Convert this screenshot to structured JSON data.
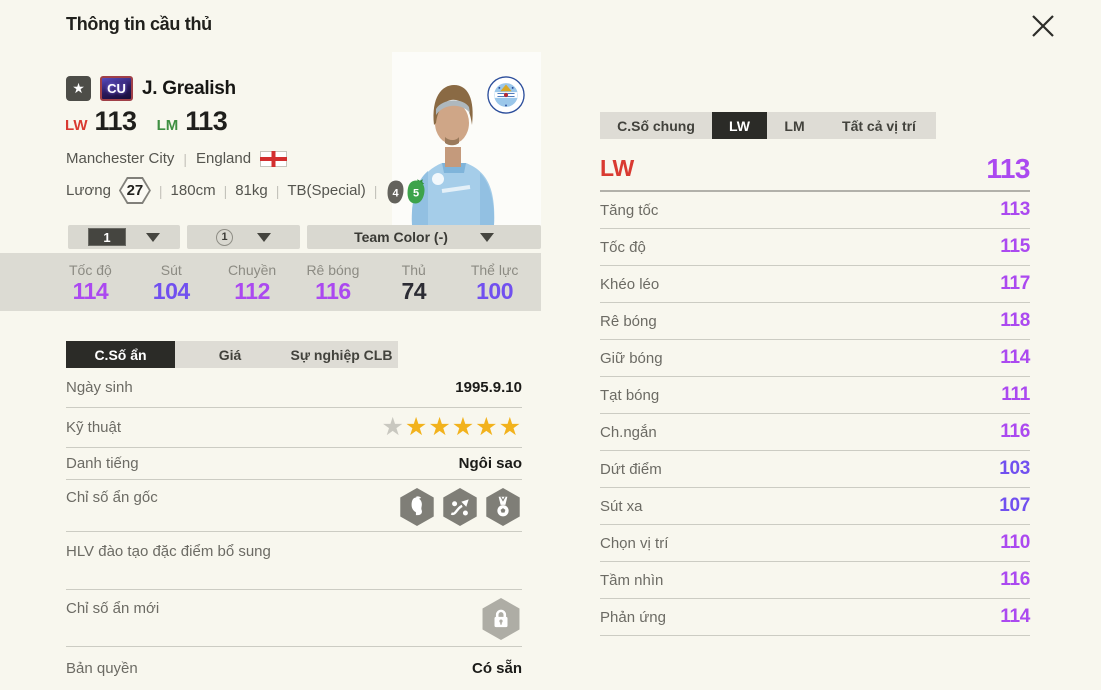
{
  "header": {
    "title": "Thông tin cầu thủ"
  },
  "player": {
    "badge": "CU",
    "name": "J. Grealish",
    "positions": [
      {
        "pos": "LW",
        "ovr": "113",
        "color_key": "pos_lw"
      },
      {
        "pos": "LM",
        "ovr": "113",
        "color_key": "pos_lm"
      }
    ],
    "club": "Manchester City",
    "nation": "England",
    "salary_label": "Lương",
    "salary": "27",
    "height": "180cm",
    "weight": "81kg",
    "body_type": "TB(Special)",
    "foot_left": "4",
    "foot_right": "5"
  },
  "selectors": {
    "level": "1",
    "enhance": "1",
    "team_color": "Team Color (-)"
  },
  "summary": [
    {
      "label": "Tốc độ",
      "value": "114",
      "tier": "purple"
    },
    {
      "label": "Sút",
      "value": "104",
      "tier": "violet"
    },
    {
      "label": "Chuyền",
      "value": "112",
      "tier": "purple"
    },
    {
      "label": "Rê bóng",
      "value": "116",
      "tier": "purple"
    },
    {
      "label": "Thủ",
      "value": "74",
      "tier": "dark"
    },
    {
      "label": "Thể lực",
      "value": "100",
      "tier": "violet"
    }
  ],
  "left_tabs": [
    {
      "label": "C.Số ẩn",
      "active": true
    },
    {
      "label": "Giá",
      "active": false
    },
    {
      "label": "Sự nghiệp CLB",
      "active": false
    }
  ],
  "details": {
    "birth": {
      "label": "Ngày sinh",
      "value": "1995.9.10"
    },
    "skill": {
      "label": "Kỹ thuật",
      "stars_gray": 1,
      "stars_gold": 5
    },
    "fame": {
      "label": "Danh tiếng",
      "value": "Ngôi sao"
    },
    "hidden": {
      "label": "Chỉ số ẩn gốc",
      "icons": [
        "flair-head",
        "dribble-path",
        "medal-ball"
      ]
    },
    "coach": {
      "label": "HLV đào tạo đặc điểm bổ sung"
    },
    "new": {
      "label": "Chỉ số ẩn mới",
      "icon": "lock"
    },
    "license": {
      "label": "Bản quyền",
      "value": "Có sẵn"
    }
  },
  "right_tabs": [
    {
      "label": "C.Số chung",
      "active": false
    },
    {
      "label": "LW",
      "active": true
    },
    {
      "label": "LM",
      "active": false
    },
    {
      "label": "Tất cả vị trí",
      "active": false
    }
  ],
  "position_detail": {
    "label": "LW",
    "value": "113",
    "tier": "purple",
    "color_key": "pos_lw"
  },
  "position_stats": [
    {
      "label": "Tăng tốc",
      "value": "113",
      "tier": "purple"
    },
    {
      "label": "Tốc độ",
      "value": "115",
      "tier": "purple"
    },
    {
      "label": "Khéo léo",
      "value": "117",
      "tier": "purple"
    },
    {
      "label": "Rê bóng",
      "value": "118",
      "tier": "purple"
    },
    {
      "label": "Giữ bóng",
      "value": "114",
      "tier": "purple"
    },
    {
      "label": "Tạt bóng",
      "value": "111",
      "tier": "purple"
    },
    {
      "label": "Ch.ngắn",
      "value": "116",
      "tier": "purple"
    },
    {
      "label": "Dứt điểm",
      "value": "103",
      "tier": "violet"
    },
    {
      "label": "Sút xa",
      "value": "107",
      "tier": "violet"
    },
    {
      "label": "Chọn vị trí",
      "value": "110",
      "tier": "purple"
    },
    {
      "label": "Tầm nhìn",
      "value": "116",
      "tier": "purple"
    },
    {
      "label": "Phản ứng",
      "value": "114",
      "tier": "purple"
    }
  ],
  "colors": {
    "purple": "#ab49f0",
    "violet": "#7150ef",
    "dark": "#2c2c34",
    "pos_lw": "#d93a31",
    "pos_lm": "#3f9042",
    "star_gold": "#f2b21c",
    "star_gray": "#c9c8c0"
  }
}
